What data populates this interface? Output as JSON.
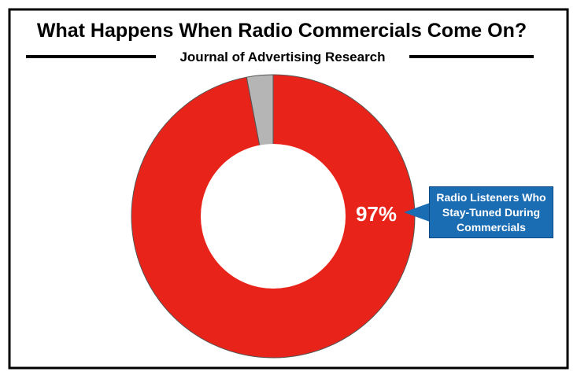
{
  "chart_data": {
    "type": "donut",
    "title": "What Happens When Radio Commercials Come On?",
    "subtitle": "Journal of Advertising Research",
    "categories": [
      "Radio Listeners Who Stay-Tuned During Commercials",
      null
    ],
    "values": [
      97,
      3
    ],
    "value_labels": [
      "97%",
      null
    ],
    "colors": [
      "#e8231a",
      "#b5b5b5"
    ]
  }
}
